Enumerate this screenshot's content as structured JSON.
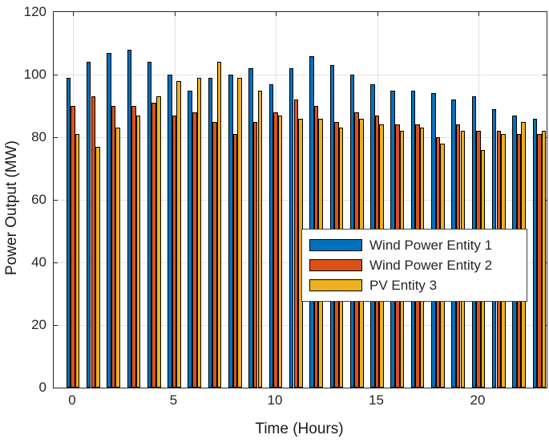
{
  "chart_data": {
    "type": "bar",
    "title": "",
    "xlabel": "Time (Hours)",
    "ylabel": "Power Output (MW)",
    "x": [
      0,
      1,
      2,
      3,
      4,
      5,
      6,
      7,
      8,
      9,
      10,
      11,
      12,
      13,
      14,
      15,
      16,
      17,
      18,
      19,
      20,
      21,
      22,
      23
    ],
    "series": [
      {
        "name": "Wind Power Entity 1",
        "color": "#0072BD",
        "values": [
          99,
          104,
          107,
          108,
          104,
          100,
          95,
          99,
          100,
          102,
          97,
          102,
          106,
          103,
          100,
          97,
          95,
          95,
          94,
          92,
          93,
          89,
          87,
          86
        ]
      },
      {
        "name": "Wind Power Entity 2",
        "color": "#D95319",
        "values": [
          90,
          93,
          90,
          90,
          91,
          87,
          88,
          85,
          81,
          85,
          88,
          92,
          90,
          85,
          88,
          87,
          84,
          84,
          80,
          84,
          82,
          82,
          81,
          81
        ]
      },
      {
        "name": "PV Entity 3",
        "color": "#EDB120",
        "values": [
          81,
          77,
          83,
          87,
          93,
          98,
          99,
          104,
          99,
          95,
          87,
          86,
          86,
          83,
          86,
          84,
          82,
          83,
          78,
          82,
          76,
          81,
          85,
          82
        ]
      }
    ],
    "ylim": [
      0,
      120
    ],
    "yticks": [
      0,
      20,
      40,
      60,
      80,
      100,
      120
    ],
    "xticks": [
      0,
      5,
      10,
      15,
      20
    ],
    "grid": true,
    "legend_position": "inside-right-middle",
    "bar_edge_color": "#000000",
    "grid_color": "#e2e2e2",
    "axis_color": "#262626"
  }
}
